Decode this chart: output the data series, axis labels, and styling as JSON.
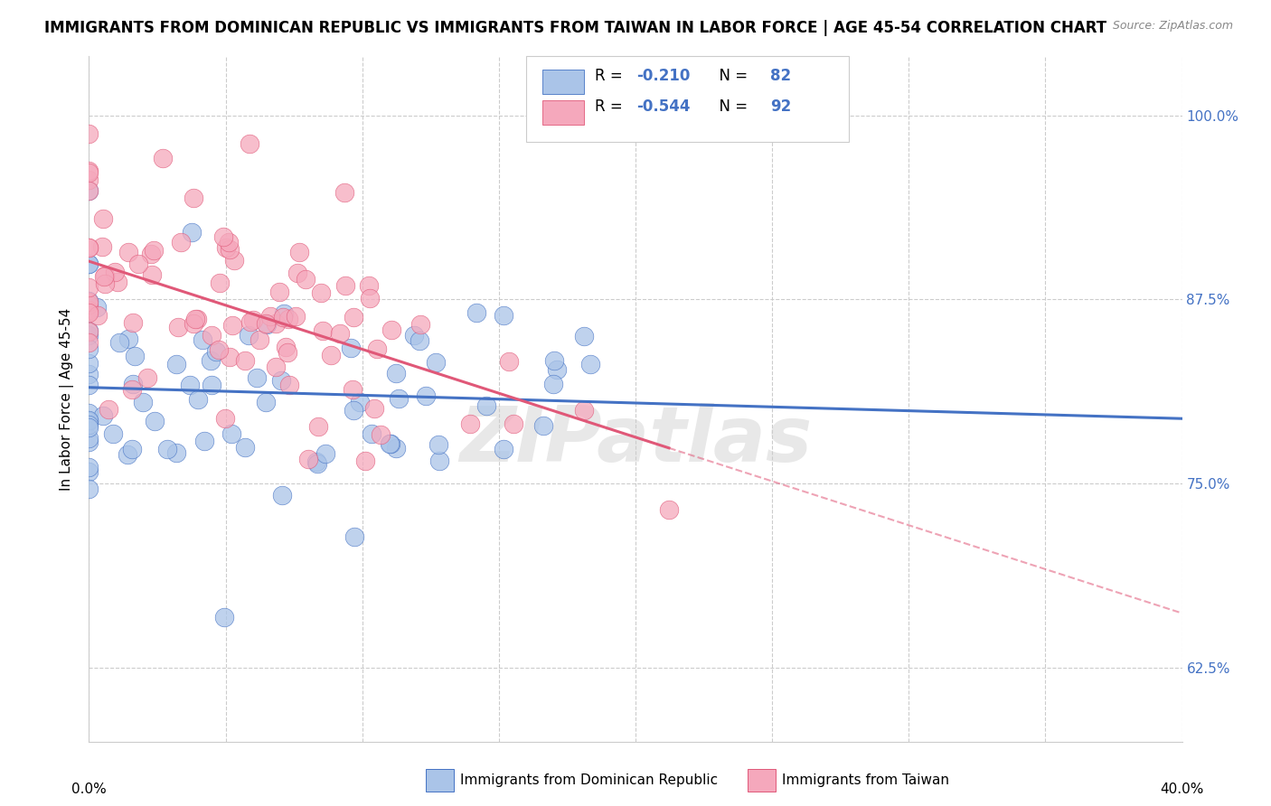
{
  "title": "IMMIGRANTS FROM DOMINICAN REPUBLIC VS IMMIGRANTS FROM TAIWAN IN LABOR FORCE | AGE 45-54 CORRELATION CHART",
  "source": "Source: ZipAtlas.com",
  "ylabel": "In Labor Force | Age 45-54",
  "ytick_labels": [
    "62.5%",
    "75.0%",
    "87.5%",
    "100.0%"
  ],
  "ytick_vals": [
    0.625,
    0.75,
    0.875,
    1.0
  ],
  "xlim": [
    0.0,
    0.4
  ],
  "ylim": [
    0.575,
    1.04
  ],
  "R_dominican": -0.21,
  "N_dominican": 82,
  "R_taiwan": -0.544,
  "N_taiwan": 92,
  "color_dominican": "#aac4e8",
  "color_taiwan": "#f5a8bc",
  "line_color_dominican": "#4472c4",
  "line_color_taiwan": "#e05878",
  "legend_label_dominican": "Immigrants from Dominican Republic",
  "legend_label_taiwan": "Immigrants from Taiwan",
  "watermark": "ZIPatlas",
  "text_color_blue": "#4472c4",
  "title_fontsize": 12,
  "label_fontsize": 11,
  "tick_fontsize": 11
}
